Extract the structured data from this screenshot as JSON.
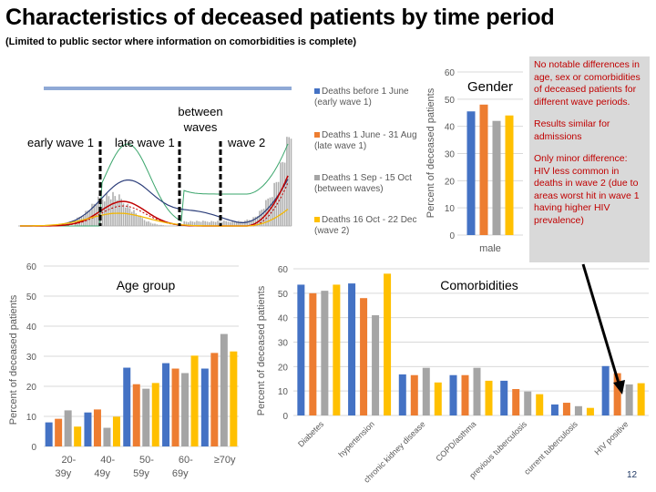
{
  "title": "Characteristics of deceased patients by time period",
  "subtitle": "(Limited to public sector where information on comorbidities is complete)",
  "epi_chart": {
    "labels": [
      "early wave 1",
      "late wave 1",
      "between waves",
      "wave 2"
    ]
  },
  "legend": [
    {
      "line1": "Deaths before 1 June",
      "line2": "(early wave 1)",
      "color": "#4472c4"
    },
    {
      "line1": "Deaths 1 June - 31 Aug",
      "line2": "(late wave 1)",
      "color": "#ed7d31"
    },
    {
      "line1": "Deaths 1 Sep - 15 Oct",
      "line2": "(between waves)",
      "color": "#a5a5a5"
    },
    {
      "line1": "Deaths 16 Oct - 22 Dec",
      "line2": "(wave 2)",
      "color": "#ffc000"
    }
  ],
  "note": {
    "p1": "No notable differences in age, sex or comorbidities of deceased patients for different wave periods.",
    "p2": "Results similar for admissions",
    "p3": "Only minor difference: HIV less common in deaths in wave 2 (due to areas worst hit in wave 1 having higher HIV prevalence)"
  },
  "page_number": "12",
  "chart_data": [
    {
      "type": "bar",
      "title": "Gender",
      "ylabel": "Percent of deceased patients",
      "ylim": [
        0,
        60
      ],
      "yticks": [
        0,
        10,
        20,
        30,
        40,
        50,
        60
      ],
      "categories": [
        "male"
      ],
      "series": [
        {
          "name": "Deaths before 1 June (early wave 1)",
          "values": [
            45.5
          ]
        },
        {
          "name": "Deaths 1 June - 31 Aug (late wave 1)",
          "values": [
            48
          ]
        },
        {
          "name": "Deaths 1 Sep - 15 Oct (between waves)",
          "values": [
            42
          ]
        },
        {
          "name": "Deaths 16 Oct - 22 Dec (wave 2)",
          "values": [
            44
          ]
        }
      ]
    },
    {
      "type": "bar",
      "title": "Age group",
      "ylabel": "Percent of deceased patients",
      "ylim": [
        0,
        60
      ],
      "yticks": [
        0,
        10,
        20,
        30,
        40,
        50,
        60
      ],
      "categories": [
        "20-39y",
        "40-49y",
        "50-59y",
        "60-69y",
        "≥70y"
      ],
      "series": [
        {
          "name": "Deaths before 1 June (early wave 1)",
          "values": [
            8,
            11.3,
            26.2,
            27.7,
            25.9
          ]
        },
        {
          "name": "Deaths 1 June - 31 Aug (late wave 1)",
          "values": [
            9.2,
            12.3,
            20.7,
            25.9,
            31.1
          ]
        },
        {
          "name": "Deaths 1 Sep - 15 Oct (between waves)",
          "values": [
            12,
            6.2,
            19.2,
            24.4,
            37.4
          ]
        },
        {
          "name": "Deaths 16 Oct - 22 Dec (wave 2)",
          "values": [
            6.6,
            9.9,
            21.1,
            30.2,
            31.6
          ]
        }
      ]
    },
    {
      "type": "bar",
      "title": "Comorbidities",
      "ylabel": "Percent of deceased patients",
      "ylim": [
        0,
        60
      ],
      "yticks": [
        0,
        10,
        20,
        30,
        40,
        50,
        60
      ],
      "categories": [
        "Diabetes",
        "hypertension",
        "chronic kidney disease",
        "COPD/asthma",
        "previous tuberculosis",
        "current tuberculosis",
        "HIV positive"
      ],
      "series": [
        {
          "name": "Deaths before 1 June (early wave 1)",
          "values": [
            53.5,
            54,
            16.8,
            16.5,
            14.2,
            4.5,
            20.2
          ]
        },
        {
          "name": "Deaths 1 June - 31 Aug (late wave 1)",
          "values": [
            50,
            48,
            16.5,
            16.5,
            10.8,
            5.2,
            17.3
          ]
        },
        {
          "name": "Deaths 1 Sep - 15 Oct (between waves)",
          "values": [
            51,
            41,
            19.5,
            19.5,
            9.8,
            3.8,
            12.7
          ]
        },
        {
          "name": "Deaths 16 Oct - 22 Dec (wave 2)",
          "values": [
            53.5,
            58,
            13.5,
            14.2,
            8.7,
            3.1,
            13.2
          ]
        }
      ]
    }
  ]
}
